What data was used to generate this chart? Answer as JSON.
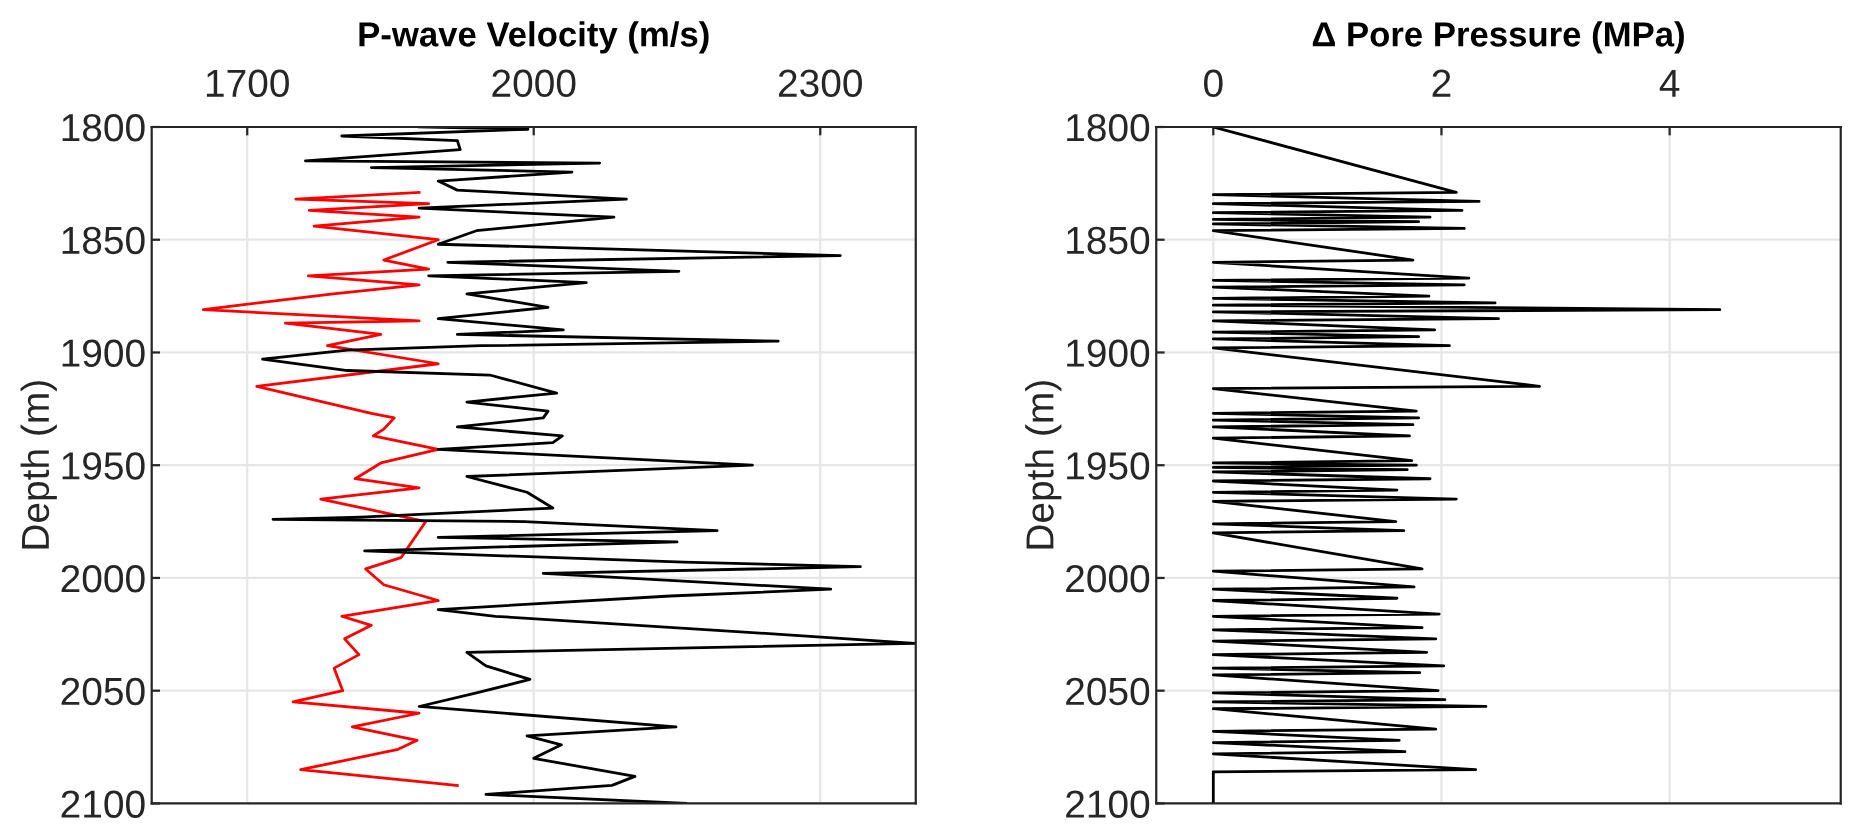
{
  "chart_data": [
    {
      "type": "line",
      "xlabel": "P-wave Velocity (m/s)",
      "ylabel": "Depth (m)",
      "xlim": [
        1600,
        2400
      ],
      "xticks": [
        1700,
        2000,
        2300
      ],
      "ylim": [
        2100,
        1800
      ],
      "yticks": [
        1800,
        1850,
        1900,
        1950,
        2000,
        2050,
        2100
      ],
      "grid": true,
      "series": [
        {
          "color": "#ff0000",
          "x": [
            1880,
            1751,
            1890,
            1765,
            1880,
            1770,
            1900,
            1843,
            1890,
            1764,
            1880,
            1790,
            1654,
            1790,
            1880,
            1740,
            1840,
            1784,
            1900,
            1710,
            1830,
            1854,
            1843,
            1832,
            1900,
            1840,
            1813,
            1880,
            1777,
            1887,
            1861,
            1824,
            1843,
            1900,
            1799,
            1830,
            1802,
            1817,
            1791,
            1800,
            1748,
            1880,
            1810,
            1878,
            1858,
            1756,
            1920
          ],
          "values": [
            1829,
            1832,
            1834,
            1837,
            1840,
            1844,
            1850,
            1859,
            1863,
            1866,
            1870,
            1874,
            1881,
            1884,
            1886,
            1887,
            1892,
            1897,
            1905,
            1915,
            1927,
            1929,
            1934,
            1937,
            1943,
            1949,
            1956,
            1960,
            1965,
            1975,
            1991,
            1996,
            2003,
            2010,
            2017,
            2021,
            2027,
            2034,
            2040,
            2050,
            2055,
            2060,
            2066,
            2072,
            2076,
            2085,
            2092
          ]
        },
        {
          "color": "#000000",
          "x": [
            1880,
            1994,
            1799,
            1920,
            1923,
            1761,
            2069,
            1830,
            2040,
            1900,
            1920,
            2097,
            1880,
            2084,
            1940,
            1900,
            2321,
            1910,
            2152,
            1890,
            2055,
            1930,
            2015,
            1900,
            2031,
            1920,
            2256,
            1945,
            1805,
            1716,
            1805,
            1954,
            2024,
            1930,
            2015,
            2010,
            1920,
            2030,
            2020,
            1900,
            2229,
            1930,
            1993,
            2020,
            1819,
            1727,
            1990,
            2192,
            1900,
            2150,
            1823,
            2157,
            2342,
            2010,
            2311,
            2143,
            1900,
            1960,
            2258,
            2399,
            1930,
            1950,
            1996,
            1940,
            1880,
            2149,
            1993,
            2029,
            2000,
            2106,
            2082,
            1950,
            2159
          ],
          "values": [
            1800,
            1801,
            1804,
            1806,
            1810,
            1815,
            1816,
            1818,
            1820,
            1824,
            1828,
            1832,
            1836,
            1840,
            1846,
            1852,
            1857,
            1860,
            1864,
            1866,
            1869,
            1874,
            1880,
            1885,
            1890,
            1892,
            1895,
            1897,
            1899,
            1903,
            1908,
            1910,
            1918,
            1922,
            1926,
            1929,
            1933,
            1937,
            1940,
            1943,
            1950,
            1955,
            1962,
            1969,
            1973,
            1974,
            1975,
            1979,
            1982,
            1984,
            1988,
            1993,
            1995,
            1998,
            2005,
            2008,
            2014,
            2017,
            2025,
            2029,
            2033,
            2039,
            2045,
            2051,
            2057,
            2066,
            2070,
            2074,
            2080,
            2088,
            2092,
            2096,
            2100
          ]
        }
      ]
    },
    {
      "type": "line",
      "xlabel": "Δ Pore Pressure (MPa)",
      "ylabel": "Depth (m)",
      "xlim": [
        -0.5,
        5.5
      ],
      "xticks": [
        0,
        2,
        4
      ],
      "ylim": [
        2100,
        1800
      ],
      "yticks": [
        1800,
        1850,
        1900,
        1950,
        2000,
        2050,
        2100
      ],
      "grid": true,
      "series": [
        {
          "color": "#000000",
          "x": [
            0,
            2.13,
            0,
            2.33,
            0,
            2.18,
            0,
            1.9,
            0,
            1.8,
            0,
            2.2,
            0,
            1.75,
            0,
            2.24,
            0,
            2.2,
            0,
            1.89,
            0,
            2.47,
            0,
            4.44,
            0,
            2.5,
            0,
            1.94,
            0,
            1.8,
            0,
            2.07,
            0,
            2.86,
            0,
            1.78,
            0,
            1.8,
            0,
            1.75,
            0,
            1.72,
            0,
            1.74,
            0,
            1.78,
            0,
            1.7,
            0,
            1.9,
            0,
            1.61,
            0,
            2.13,
            0,
            1.6,
            0,
            1.67,
            0,
            1.83,
            0,
            1.76,
            0,
            1.61,
            0,
            1.98,
            0,
            1.83,
            0,
            1.95,
            0,
            1.87,
            0,
            2.02,
            0,
            1.81,
            0,
            1.97,
            0,
            2.03,
            0,
            2.39,
            0,
            1.95,
            0,
            1.63,
            0,
            1.68,
            0,
            2.3,
            0,
            0
          ],
          "values": [
            1800,
            1829,
            1830,
            1833,
            1834,
            1837,
            1838,
            1840,
            1841,
            1842,
            1843,
            1845,
            1846,
            1859,
            1860,
            1867,
            1868,
            1870,
            1871,
            1875,
            1876,
            1878,
            1879,
            1881,
            1882,
            1885,
            1886,
            1890,
            1891,
            1893,
            1894,
            1897,
            1898,
            1915,
            1916,
            1926,
            1927,
            1929,
            1930,
            1932,
            1933,
            1937,
            1938,
            1948,
            1949,
            1950,
            1951,
            1952,
            1953,
            1956,
            1957,
            1961,
            1962,
            1965,
            1966,
            1975,
            1976,
            1979,
            1980,
            1996,
            1997,
            2004,
            2005,
            2009,
            2010,
            2016,
            2017,
            2022,
            2023,
            2027,
            2028,
            2033,
            2034,
            2039,
            2040,
            2042,
            2043,
            2050,
            2051,
            2054,
            2055,
            2057,
            2058,
            2067,
            2068,
            2072,
            2073,
            2077,
            2078,
            2085,
            2086,
            2100
          ]
        }
      ]
    }
  ]
}
